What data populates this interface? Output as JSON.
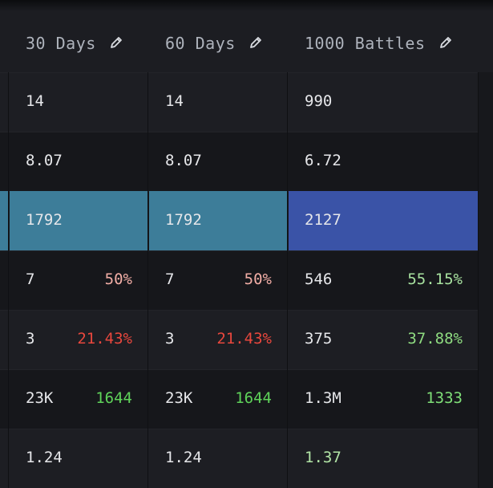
{
  "table": {
    "header": [
      "30 Days",
      "60 Days",
      "1000 Battles"
    ],
    "rows": [
      [
        {
          "value": "14"
        },
        {
          "value": "14"
        },
        {
          "value": "990"
        }
      ],
      [
        {
          "value": "8.07"
        },
        {
          "value": "8.07"
        },
        {
          "value": "6.72"
        }
      ],
      [
        {
          "value": "1792"
        },
        {
          "value": "1792"
        },
        {
          "value": "2127"
        }
      ],
      [
        {
          "value": "7",
          "extra": "50%",
          "extra_color": "#f2aea6"
        },
        {
          "value": "7",
          "extra": "50%",
          "extra_color": "#f2aea6"
        },
        {
          "value": "546",
          "extra": "55.15%",
          "extra_color": "#a8e2a0"
        }
      ],
      [
        {
          "value": "3",
          "extra": "21.43%",
          "extra_color": "#e8473d"
        },
        {
          "value": "3",
          "extra": "21.43%",
          "extra_color": "#e8473d"
        },
        {
          "value": "375",
          "extra": "37.88%",
          "extra_color": "#8edb80"
        }
      ],
      [
        {
          "value": "23K",
          "extra": "1644",
          "extra_color": "#5fd35a"
        },
        {
          "value": "23K",
          "extra": "1644",
          "extra_color": "#5fd35a"
        },
        {
          "value": "1.3M",
          "extra": "1333",
          "extra_color": "#7fdf78"
        }
      ],
      [
        {
          "value": "1.24"
        },
        {
          "value": "1.24"
        },
        {
          "value": "1.37",
          "color": "#b2e5a6"
        }
      ]
    ]
  }
}
